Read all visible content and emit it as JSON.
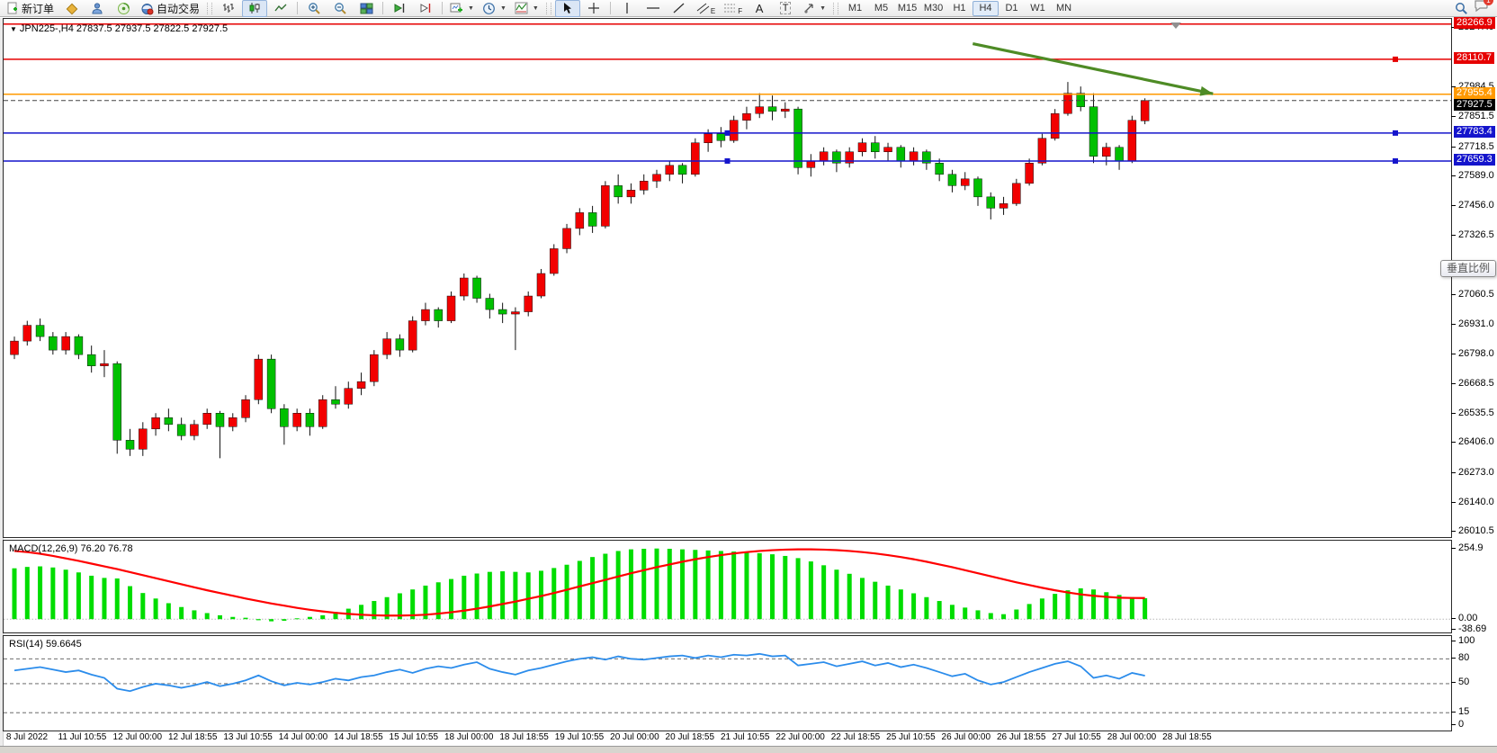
{
  "toolbar": {
    "new_order_label": "新订单",
    "auto_trading_label": "自动交易",
    "glyphs": {
      "channel": "E",
      "fibonacci": "F",
      "text": "A",
      "label": "T"
    },
    "timeframes": [
      "M1",
      "M5",
      "M15",
      "M30",
      "H1",
      "H4",
      "D1",
      "W1",
      "MN"
    ],
    "active_timeframe": "H4",
    "notification_count": "1"
  },
  "tooltip": {
    "text": "垂直比例"
  },
  "dates": [
    "8 Jul 2022",
    "11 Jul 10:55",
    "12 Jul 00:00",
    "12 Jul 18:55",
    "13 Jul 10:55",
    "14 Jul 00:00",
    "14 Jul 18:55",
    "15 Jul 10:55",
    "18 Jul 00:00",
    "18 Jul 18:55",
    "19 Jul 10:55",
    "20 Jul 00:00",
    "20 Jul 18:55",
    "21 Jul 10:55",
    "22 Jul 00:00",
    "22 Jul 18:55",
    "25 Jul 10:55",
    "26 Jul 00:00",
    "26 Jul 18:55",
    "27 Jul 10:55",
    "28 Jul 00:00",
    "28 Jul 18:55"
  ],
  "chart_data": [
    {
      "type": "candlestick",
      "title": "JPN225-,H4 27837.5 27937.5 27822.5 27927.5",
      "symbol": "JPN225-",
      "timeframe": "H4",
      "current_ohlc": {
        "open": 27837.5,
        "high": 27937.5,
        "low": 27822.5,
        "close": 27927.5
      },
      "ylim": [
        25990,
        28290
      ],
      "colors": {
        "up": "#f20000",
        "down": "#00c000",
        "wick": "#111111"
      },
      "y_ticks": [
        "28247.0",
        "27984.5",
        "27851.5",
        "27718.5",
        "27589.0",
        "27456.0",
        "27326.5",
        "27060.5",
        "26931.0",
        "26798.0",
        "26668.5",
        "26535.5",
        "26406.0",
        "26273.0",
        "26140.0",
        "26010.5"
      ],
      "hlines": [
        {
          "price": 28266.9,
          "label": "28266.9",
          "color": "#e60000",
          "markers": []
        },
        {
          "price": 28110.7,
          "label": "28110.7",
          "color": "#e60000",
          "markers": [
            "right"
          ]
        },
        {
          "price": 27955.4,
          "label": "27955.4",
          "color": "#ff9900",
          "markers": []
        },
        {
          "price": 27783.4,
          "label": "27783.4",
          "color": "#1414cc",
          "markers": [
            "center",
            "right"
          ]
        },
        {
          "price": 27659.3,
          "label": "27659.3",
          "color": "#1414cc",
          "markers": [
            "center",
            "right"
          ]
        }
      ],
      "bid": {
        "price": 27927.5,
        "label": "27927.5",
        "color": "#000000"
      },
      "arrow": {
        "i1": 74.6,
        "p1": 28180,
        "i2": 93.3,
        "p2": 27958,
        "color": "#4e8b25"
      },
      "candles": [
        [
          26800,
          26880,
          26780,
          26860
        ],
        [
          26860,
          26950,
          26840,
          26930
        ],
        [
          26930,
          26960,
          26860,
          26880
        ],
        [
          26880,
          26900,
          26800,
          26820
        ],
        [
          26820,
          26900,
          26800,
          26880
        ],
        [
          26880,
          26890,
          26780,
          26800
        ],
        [
          26800,
          26840,
          26720,
          26750
        ],
        [
          26750,
          26820,
          26700,
          26760
        ],
        [
          26760,
          26770,
          26360,
          26420
        ],
        [
          26420,
          26470,
          26350,
          26380
        ],
        [
          26380,
          26500,
          26350,
          26470
        ],
        [
          26470,
          26540,
          26440,
          26520
        ],
        [
          26520,
          26560,
          26460,
          26490
        ],
        [
          26490,
          26520,
          26420,
          26440
        ],
        [
          26440,
          26510,
          26420,
          26490
        ],
        [
          26490,
          26560,
          26470,
          26540
        ],
        [
          26540,
          26550,
          26340,
          26480
        ],
        [
          26480,
          26540,
          26460,
          26520
        ],
        [
          26520,
          26620,
          26500,
          26600
        ],
        [
          26600,
          26800,
          26580,
          26780
        ],
        [
          26780,
          26800,
          26540,
          26560
        ],
        [
          26560,
          26580,
          26400,
          26480
        ],
        [
          26480,
          26560,
          26460,
          26540
        ],
        [
          26540,
          26560,
          26440,
          26480
        ],
        [
          26480,
          26620,
          26470,
          26600
        ],
        [
          26600,
          26660,
          26560,
          26580
        ],
        [
          26580,
          26680,
          26560,
          26650
        ],
        [
          26650,
          26720,
          26620,
          26680
        ],
        [
          26680,
          26820,
          26660,
          26800
        ],
        [
          26800,
          26900,
          26780,
          26870
        ],
        [
          26870,
          26890,
          26790,
          26820
        ],
        [
          26820,
          26970,
          26810,
          26950
        ],
        [
          26950,
          27030,
          26930,
          27000
        ],
        [
          27000,
          27010,
          26920,
          26950
        ],
        [
          26950,
          27080,
          26940,
          27060
        ],
        [
          27060,
          27160,
          27040,
          27140
        ],
        [
          27140,
          27150,
          27030,
          27050
        ],
        [
          27050,
          27070,
          26960,
          27000
        ],
        [
          27000,
          27030,
          26940,
          26980
        ],
        [
          26980,
          27010,
          26820,
          26990
        ],
        [
          26990,
          27080,
          26970,
          27060
        ],
        [
          27060,
          27180,
          27050,
          27160
        ],
        [
          27160,
          27290,
          27150,
          27270
        ],
        [
          27270,
          27380,
          27250,
          27360
        ],
        [
          27360,
          27450,
          27330,
          27430
        ],
        [
          27430,
          27460,
          27340,
          27370
        ],
        [
          27370,
          27570,
          27360,
          27550
        ],
        [
          27550,
          27600,
          27470,
          27500
        ],
        [
          27500,
          27560,
          27470,
          27530
        ],
        [
          27530,
          27600,
          27510,
          27570
        ],
        [
          27570,
          27620,
          27540,
          27600
        ],
        [
          27600,
          27660,
          27570,
          27640
        ],
        [
          27640,
          27650,
          27560,
          27600
        ],
        [
          27600,
          27760,
          27590,
          27740
        ],
        [
          27740,
          27800,
          27700,
          27780
        ],
        [
          27780,
          27810,
          27720,
          27750
        ],
        [
          27750,
          27860,
          27740,
          27840
        ],
        [
          27840,
          27900,
          27800,
          27870
        ],
        [
          27870,
          27960,
          27850,
          27900
        ],
        [
          27900,
          27950,
          27840,
          27880
        ],
        [
          27880,
          27920,
          27850,
          27890
        ],
        [
          27890,
          27900,
          27600,
          27630
        ],
        [
          27630,
          27690,
          27590,
          27660
        ],
        [
          27660,
          27720,
          27640,
          27700
        ],
        [
          27700,
          27710,
          27610,
          27650
        ],
        [
          27650,
          27720,
          27630,
          27700
        ],
        [
          27700,
          27760,
          27680,
          27740
        ],
        [
          27740,
          27770,
          27670,
          27700
        ],
        [
          27700,
          27740,
          27660,
          27720
        ],
        [
          27720,
          27730,
          27630,
          27660
        ],
        [
          27660,
          27720,
          27640,
          27700
        ],
        [
          27700,
          27710,
          27620,
          27650
        ],
        [
          27650,
          27670,
          27570,
          27600
        ],
        [
          27600,
          27620,
          27520,
          27550
        ],
        [
          27550,
          27610,
          27530,
          27580
        ],
        [
          27580,
          27590,
          27460,
          27500
        ],
        [
          27500,
          27520,
          27400,
          27450
        ],
        [
          27450,
          27500,
          27420,
          27470
        ],
        [
          27470,
          27580,
          27460,
          27560
        ],
        [
          27560,
          27670,
          27550,
          27650
        ],
        [
          27650,
          27780,
          27640,
          27760
        ],
        [
          27760,
          27890,
          27750,
          27870
        ],
        [
          27870,
          28010,
          27860,
          27960
        ],
        [
          27960,
          27990,
          27880,
          27900
        ],
        [
          27900,
          27960,
          27650,
          27680
        ],
        [
          27680,
          27740,
          27640,
          27720
        ],
        [
          27720,
          27730,
          27620,
          27660
        ],
        [
          27660,
          27860,
          27650,
          27840
        ],
        [
          27837.5,
          27937.5,
          27822.5,
          27927.5
        ]
      ]
    },
    {
      "type": "bar",
      "label": "MACD(12,26,9) 76.20 76.78",
      "name": "MACD(12,26,9)",
      "macd_value": 76.2,
      "signal_value": 76.78,
      "ylim": [
        -48.5,
        285.5
      ],
      "colors": {
        "histogram": "#00dd00",
        "signal": "#ff0000"
      },
      "y_ticks": [
        {
          "v": 254.9,
          "t": "254.9"
        },
        {
          "v": 0,
          "t": "0.00"
        },
        {
          "v": -38.69,
          "t": "-38.69"
        }
      ],
      "values": [
        185,
        190,
        192,
        188,
        180,
        170,
        158,
        150,
        148,
        120,
        95,
        75,
        58,
        44,
        32,
        22,
        14,
        8,
        5,
        -4,
        -8,
        -6,
        3,
        8,
        14,
        26,
        38,
        52,
        66,
        80,
        94,
        108,
        122,
        134,
        146,
        158,
        166,
        172,
        174,
        172,
        170,
        176,
        186,
        198,
        212,
        226,
        238,
        248,
        254,
        256,
        257,
        256,
        254,
        252,
        250,
        248,
        246,
        243,
        240,
        236,
        230,
        222,
        210,
        196,
        180,
        165,
        150,
        136,
        122,
        108,
        94,
        80,
        66,
        52,
        42,
        32,
        22,
        18,
        35,
        55,
        75,
        92,
        105,
        112,
        108,
        98,
        88,
        80,
        76.2
      ],
      "signal": [
        248,
        244,
        238,
        230,
        221,
        212,
        202,
        192,
        182,
        171,
        160,
        149,
        138,
        127,
        116,
        105,
        95,
        85,
        75,
        66,
        57,
        49,
        41,
        34,
        28,
        23,
        19,
        16,
        14,
        13,
        13,
        14,
        16,
        20,
        25,
        31,
        38,
        46,
        55,
        64,
        74,
        84,
        95,
        107,
        119,
        131,
        143,
        155,
        167,
        178,
        189,
        199,
        209,
        218,
        226,
        233,
        239,
        244,
        248,
        251,
        253,
        254,
        254,
        253,
        251,
        248,
        244,
        239,
        233,
        226,
        218,
        209,
        199,
        189,
        178,
        167,
        156,
        145,
        134,
        124,
        114,
        105,
        97,
        90,
        85,
        81,
        78,
        77,
        76.8
      ]
    },
    {
      "type": "line",
      "label": "RSI(14) 59.6645",
      "name": "RSI(14)",
      "value": 59.6645,
      "ylim": [
        -6.5,
        107.5
      ],
      "colors": {
        "line": "#2b8ceb"
      },
      "levels": [
        80,
        50,
        15
      ],
      "y_ticks": [
        {
          "v": 100,
          "t": "100"
        },
        {
          "v": 80,
          "t": "80"
        },
        {
          "v": 50,
          "t": "50"
        },
        {
          "v": 15,
          "t": "15"
        },
        {
          "v": 0,
          "t": "0"
        }
      ],
      "values": [
        66,
        68,
        70,
        67,
        64,
        66,
        61,
        57,
        44,
        41,
        46,
        50,
        48,
        45,
        48,
        52,
        47,
        50,
        54,
        60,
        53,
        48,
        51,
        49,
        52,
        56,
        54,
        58,
        60,
        64,
        67,
        63,
        68,
        71,
        69,
        73,
        76,
        68,
        64,
        61,
        66,
        69,
        73,
        77,
        80,
        82,
        79,
        83,
        80,
        79,
        81,
        83,
        84,
        81,
        84,
        82,
        85,
        84,
        86,
        83,
        84,
        72,
        74,
        76,
        71,
        74,
        77,
        72,
        75,
        70,
        73,
        69,
        64,
        59,
        62,
        54,
        49,
        52,
        58,
        64,
        69,
        74,
        77,
        71,
        57,
        60,
        56,
        63,
        59.66
      ]
    }
  ]
}
